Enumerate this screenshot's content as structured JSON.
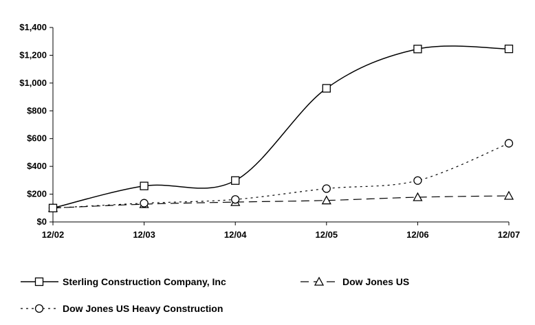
{
  "chart_data": {
    "type": "line",
    "title": "",
    "xlabel": "",
    "ylabel": "",
    "categories": [
      "12/02",
      "12/03",
      "12/04",
      "12/05",
      "12/06",
      "12/07"
    ],
    "y_ticks": [
      "$0",
      "$200",
      "$400",
      "$600",
      "$800",
      "$1,000",
      "$1,200",
      "$1,400"
    ],
    "ylim": [
      0,
      1400
    ],
    "grid": false,
    "legend_position": "bottom",
    "series": [
      {
        "name": "Sterling Construction Company, Inc",
        "values": [
          100,
          259,
          298,
          962,
          1245,
          1246
        ],
        "marker": "square",
        "line_style": "solid",
        "color": "#000000"
      },
      {
        "name": "Dow Jones US",
        "values": [
          100,
          128,
          143,
          155,
          178,
          188
        ],
        "marker": "triangle",
        "line_style": "dashed",
        "color": "#000000"
      },
      {
        "name": "Dow Jones US Heavy Construction",
        "values": [
          100,
          135,
          162,
          240,
          298,
          566
        ],
        "marker": "circle",
        "line_style": "dotted",
        "color": "#000000"
      }
    ]
  }
}
